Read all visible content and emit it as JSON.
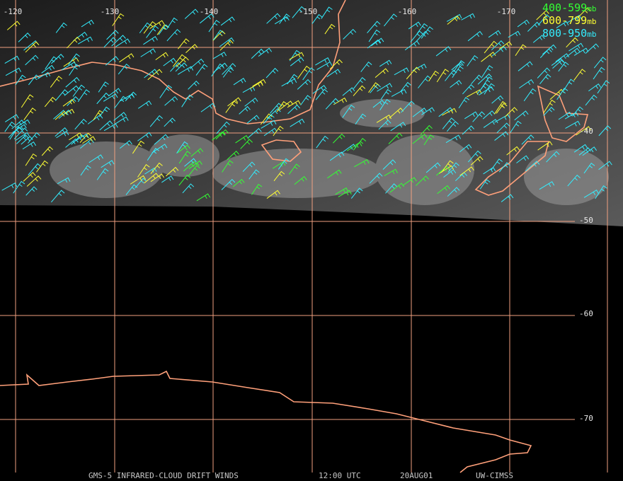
{
  "longitude_labels": [
    "-120",
    "-130",
    "-140",
    "-150",
    "-160",
    "-170"
  ],
  "latitude_labels": [
    "-40",
    "-50",
    "-60",
    "-70"
  ],
  "legend": [
    {
      "label": "400-599",
      "unit": "mb",
      "color": "#33ff33"
    },
    {
      "label": "600-799",
      "unit": "mb",
      "color": "#ffff33"
    },
    {
      "label": "800-950",
      "unit": "mb",
      "color": "#33eeff"
    }
  ],
  "footer": {
    "title": "GMS-5 INFRARED-CLOUD DRIFT WINDS",
    "time": "12:00 UTC",
    "date": "20AUG01",
    "source": "UW-CIMSS"
  }
}
